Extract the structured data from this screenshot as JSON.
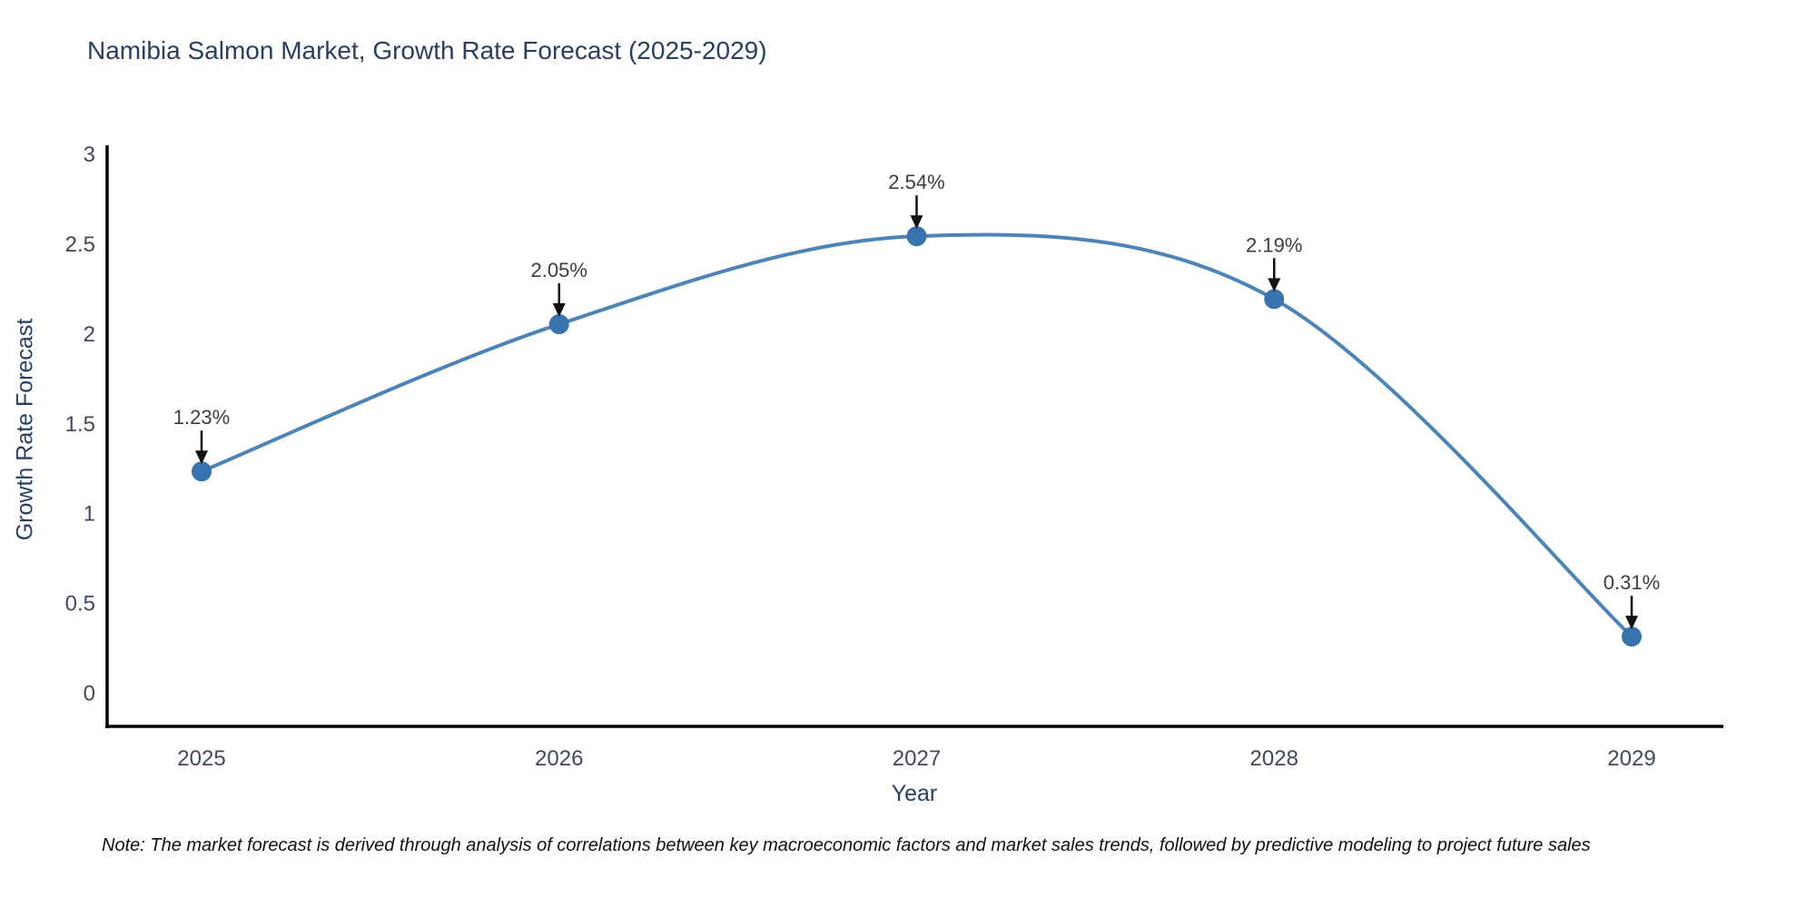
{
  "title": "Namibia Salmon Market, Growth Rate Forecast (2025-2029)",
  "note": "Note: The market forecast is derived through analysis of correlations between key macroeconomic factors and market sales trends, followed by predictive modeling to project future sales",
  "chart_data": {
    "type": "line",
    "title": "Namibia Salmon Market, Growth Rate Forecast (2025-2029)",
    "xlabel": "Year",
    "ylabel": "Growth Rate Forecast",
    "categories": [
      "2025",
      "2026",
      "2027",
      "2028",
      "2029"
    ],
    "values": [
      1.23,
      2.05,
      2.54,
      2.19,
      0.31
    ],
    "point_labels": [
      "1.23%",
      "2.05%",
      "2.54%",
      "2.19%",
      "0.31%"
    ],
    "series_name": "Growth Rate Forecast (%)",
    "ytick_values": [
      0,
      0.5,
      1,
      1.5,
      2,
      2.5,
      3
    ],
    "ytick_labels": [
      "0",
      "0.5",
      "1",
      "1.5",
      "2",
      "2.5",
      "3"
    ],
    "ylim": [
      -0.2,
      3.05
    ],
    "line_shape": "spline",
    "grid": false,
    "legend": "none",
    "annotation_arrows": true,
    "colors": {
      "line": "#4e84b5",
      "marker": "#3873ae",
      "axis": "#000000",
      "arrow": "#111111",
      "title_text": "#2a3f5f",
      "tick_text": "#42495a",
      "annotation_text": "#3d3d3d",
      "note_text": "#111111",
      "background": "#ffffff"
    }
  }
}
